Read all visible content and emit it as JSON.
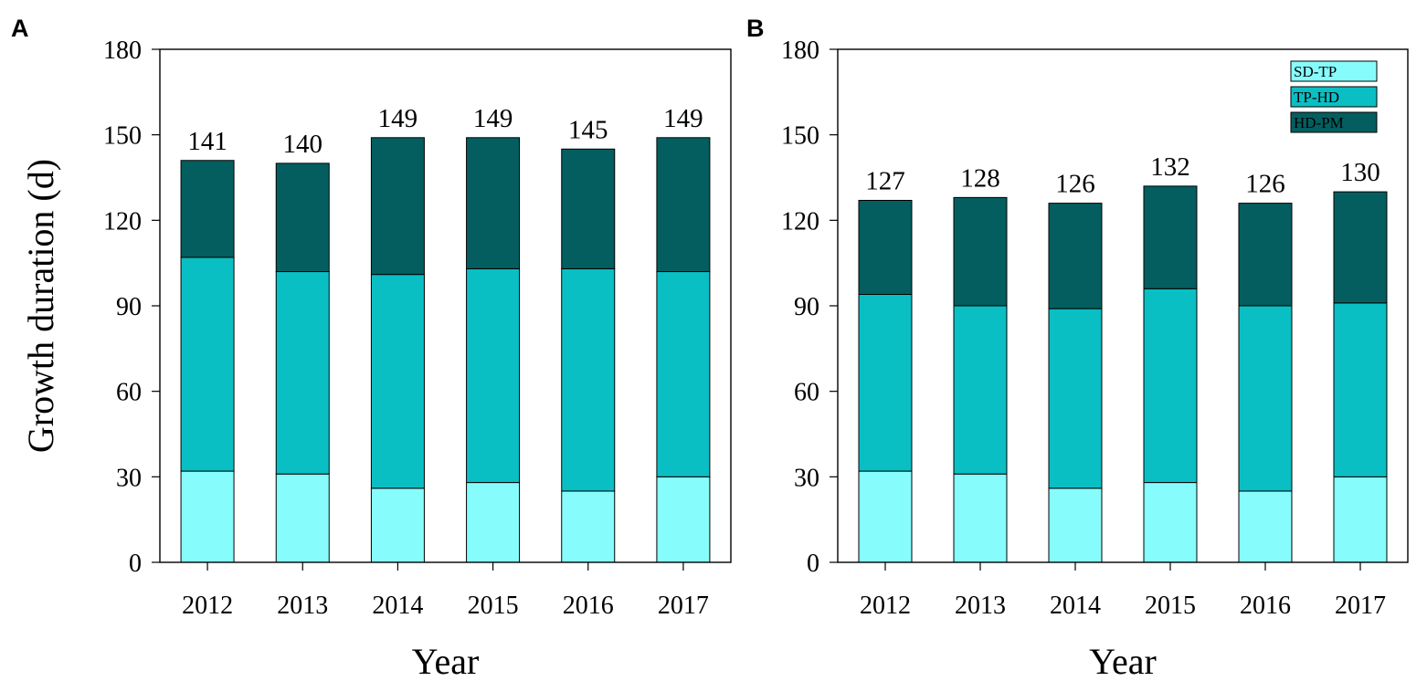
{
  "chart_data": [
    {
      "panel": "A",
      "type": "bar",
      "stacked": true,
      "title": "",
      "xlabel": "Year",
      "ylabel": "Growth duration (d)",
      "ylim": [
        0,
        180
      ],
      "yticks": [
        0,
        30,
        60,
        90,
        120,
        150,
        180
      ],
      "categories": [
        "2012",
        "2013",
        "2014",
        "2015",
        "2016",
        "2017"
      ],
      "series": [
        {
          "name": "SD-TP",
          "color": "#87FCFC",
          "values": [
            32,
            31,
            26,
            28,
            25,
            30
          ]
        },
        {
          "name": "TP-HD",
          "color": "#0ABFC4",
          "values": [
            75,
            71,
            75,
            75,
            78,
            72
          ]
        },
        {
          "name": "HD-PM",
          "color": "#045E5F",
          "values": [
            34,
            38,
            48,
            46,
            42,
            47
          ]
        }
      ],
      "totals": [
        "141",
        "140",
        "149",
        "149",
        "145",
        "149"
      ],
      "grid": false,
      "legend": null
    },
    {
      "panel": "B",
      "type": "bar",
      "stacked": true,
      "title": "",
      "xlabel": "Year",
      "ylabel": "",
      "ylim": [
        0,
        180
      ],
      "yticks": [
        0,
        30,
        60,
        90,
        120,
        150,
        180
      ],
      "categories": [
        "2012",
        "2013",
        "2014",
        "2015",
        "2016",
        "2017"
      ],
      "series": [
        {
          "name": "SD-TP",
          "color": "#87FCFC",
          "values": [
            32,
            31,
            26,
            28,
            25,
            30
          ]
        },
        {
          "name": "TP-HD",
          "color": "#0ABFC4",
          "values": [
            62,
            59,
            63,
            68,
            65,
            61
          ]
        },
        {
          "name": "HD-PM",
          "color": "#045E5F",
          "values": [
            33,
            38,
            37,
            36,
            36,
            39
          ]
        }
      ],
      "totals": [
        "127",
        "128",
        "126",
        "132",
        "126",
        "130"
      ],
      "grid": false,
      "legend": "top-right"
    }
  ]
}
